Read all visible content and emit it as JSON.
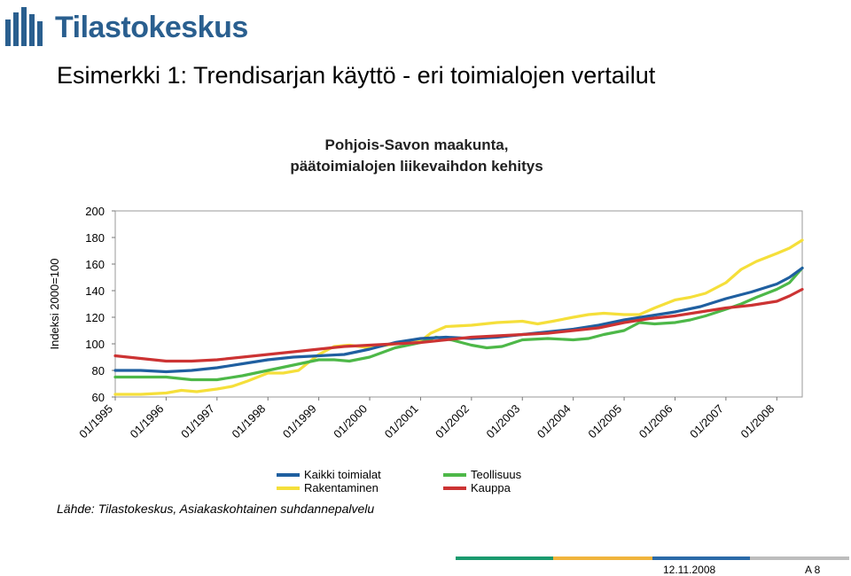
{
  "logo": {
    "text": "Tilastokeskus"
  },
  "slide_title": "Esimerkki 1: Trendisarjan käyttö - eri toimialojen vertailut",
  "source": "Lähde: Tilastokeskus, Asiakaskohtainen suhdannepalvelu",
  "footer": {
    "date": "12.11.2008",
    "page": "A 8",
    "bar_colors": [
      "#1a9a6e",
      "#f0b43c",
      "#2b6aa8",
      "#bdbdbd"
    ]
  },
  "chart_data": {
    "type": "line",
    "title_lines": [
      "Pohjois-Savon maakunta,",
      "päätoimialojen liikevaihdon kehitys"
    ],
    "ylabel": "Indeksi 2000=100",
    "ylim": [
      60,
      200
    ],
    "yticks": [
      60,
      80,
      100,
      120,
      140,
      160,
      180,
      200
    ],
    "xlim": [
      1995.0,
      2008.5
    ],
    "xtick_labels": [
      "01/1995",
      "01/1996",
      "01/1997",
      "01/1998",
      "01/1999",
      "01/2000",
      "01/2001",
      "01/2002",
      "01/2003",
      "01/2004",
      "01/2005",
      "01/2006",
      "01/2007",
      "01/2008"
    ],
    "grid": false,
    "legend_position": "bottom",
    "series": [
      {
        "name": "Kaikki toimialat",
        "color": "#1f5fa0",
        "x": [
          1995.0,
          1995.5,
          1996.0,
          1996.5,
          1997.0,
          1997.5,
          1998.0,
          1998.5,
          1999.0,
          1999.5,
          2000.0,
          2000.5,
          2001.0,
          2001.5,
          2002.0,
          2002.5,
          2003.0,
          2003.5,
          2004.0,
          2004.5,
          2005.0,
          2005.5,
          2006.0,
          2006.5,
          2007.0,
          2007.5,
          2008.0,
          2008.25,
          2008.5
        ],
        "y": [
          80,
          80,
          79,
          80,
          82,
          85,
          88,
          90,
          91,
          92,
          96,
          101,
          104,
          105,
          104,
          105,
          107,
          109,
          111,
          114,
          118,
          121,
          124,
          128,
          134,
          139,
          145,
          150,
          157
        ]
      },
      {
        "name": "Rakentaminen",
        "color": "#f5df3a",
        "x": [
          1995.0,
          1995.5,
          1996.0,
          1996.3,
          1996.6,
          1997.0,
          1997.3,
          1997.6,
          1998.0,
          1998.3,
          1998.6,
          1999.0,
          1999.3,
          1999.6,
          2000.0,
          2000.5,
          2001.0,
          2001.2,
          2001.5,
          2002.0,
          2002.5,
          2003.0,
          2003.3,
          2003.6,
          2004.0,
          2004.3,
          2004.6,
          2005.0,
          2005.3,
          2005.6,
          2006.0,
          2006.3,
          2006.6,
          2007.0,
          2007.3,
          2007.6,
          2008.0,
          2008.25,
          2008.5
        ],
        "y": [
          62,
          62,
          63,
          65,
          64,
          66,
          68,
          72,
          78,
          78,
          80,
          92,
          98,
          99,
          97,
          100,
          102,
          108,
          113,
          114,
          116,
          117,
          115,
          117,
          120,
          122,
          123,
          122,
          122,
          127,
          133,
          135,
          138,
          146,
          156,
          162,
          168,
          172,
          178
        ]
      },
      {
        "name": "Teollisuus",
        "color": "#4db848",
        "x": [
          1995.0,
          1995.5,
          1996.0,
          1996.5,
          1997.0,
          1997.5,
          1998.0,
          1998.5,
          1999.0,
          1999.3,
          1999.6,
          2000.0,
          2000.5,
          2001.0,
          2001.3,
          2001.6,
          2002.0,
          2002.3,
          2002.6,
          2003.0,
          2003.5,
          2004.0,
          2004.3,
          2004.6,
          2005.0,
          2005.3,
          2005.6,
          2006.0,
          2006.3,
          2006.6,
          2007.0,
          2007.3,
          2007.6,
          2008.0,
          2008.25,
          2008.5
        ],
        "y": [
          75,
          75,
          75,
          73,
          73,
          76,
          80,
          84,
          88,
          88,
          87,
          90,
          97,
          101,
          105,
          103,
          99,
          97,
          98,
          103,
          104,
          103,
          104,
          107,
          110,
          116,
          115,
          116,
          118,
          121,
          126,
          130,
          135,
          141,
          146,
          157
        ]
      },
      {
        "name": "Kauppa",
        "color": "#cc3333",
        "x": [
          1995.0,
          1995.5,
          1996.0,
          1996.5,
          1997.0,
          1997.5,
          1998.0,
          1998.5,
          1999.0,
          1999.5,
          2000.0,
          2000.5,
          2001.0,
          2001.5,
          2002.0,
          2002.5,
          2003.0,
          2003.5,
          2004.0,
          2004.5,
          2005.0,
          2005.5,
          2006.0,
          2006.5,
          2007.0,
          2007.5,
          2008.0,
          2008.25,
          2008.5
        ],
        "y": [
          91,
          89,
          87,
          87,
          88,
          90,
          92,
          94,
          96,
          98,
          99,
          100,
          101,
          103,
          105,
          106,
          107,
          108,
          110,
          112,
          116,
          119,
          121,
          124,
          127,
          129,
          132,
          136,
          141
        ]
      }
    ]
  }
}
